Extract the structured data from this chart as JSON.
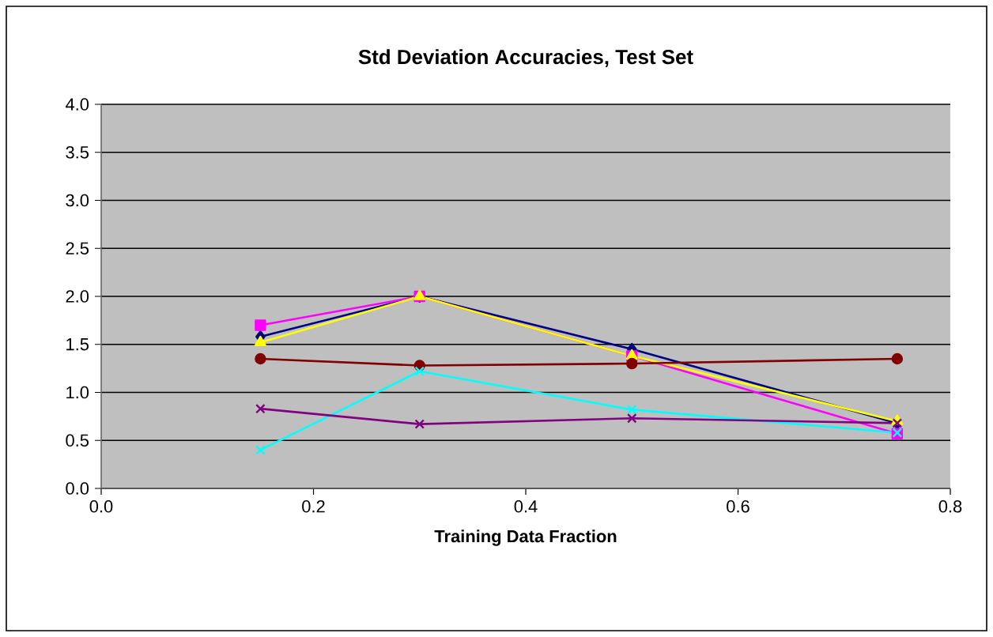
{
  "chart_data": {
    "type": "line",
    "title": "Std Deviation Accuracies, Test Set",
    "xlabel": "Training Data Fraction",
    "x": [
      0.15,
      0.3,
      0.5,
      0.75
    ],
    "series": [
      {
        "color": "#000080",
        "marker": "diamond",
        "values": [
          1.58,
          2.0,
          1.45,
          0.68
        ]
      },
      {
        "color": "#ff00ff",
        "marker": "square",
        "values": [
          1.7,
          2.0,
          1.38,
          0.57
        ]
      },
      {
        "color": "#ffff00",
        "marker": "triangle",
        "values": [
          1.52,
          2.0,
          1.38,
          0.7
        ]
      },
      {
        "color": "#800000",
        "marker": "circle",
        "values": [
          1.35,
          1.28,
          1.3,
          1.35
        ]
      },
      {
        "color": "#00ffff",
        "marker": "cross",
        "values": [
          0.4,
          1.22,
          0.82,
          0.58
        ]
      },
      {
        "color": "#800080",
        "marker": "cross",
        "values": [
          0.83,
          0.67,
          0.73,
          0.68
        ]
      }
    ],
    "xlim": [
      0,
      0.8
    ],
    "ylim": [
      0,
      4
    ],
    "xticks": [
      {
        "value": 0,
        "label": "0.0"
      },
      {
        "value": 0.2,
        "label": "0.2"
      },
      {
        "value": 0.4,
        "label": "0.4"
      },
      {
        "value": 0.6,
        "label": "0.6"
      },
      {
        "value": 0.8,
        "label": "0.8"
      }
    ],
    "yticks": [
      {
        "value": 0,
        "label": "0.0"
      },
      {
        "value": 0.5,
        "label": "0.5"
      },
      {
        "value": 1,
        "label": "1.0"
      },
      {
        "value": 1.5,
        "label": "1.5"
      },
      {
        "value": 2,
        "label": "2.0"
      },
      {
        "value": 2.5,
        "label": "2.5"
      },
      {
        "value": 3,
        "label": "3.0"
      },
      {
        "value": 3.5,
        "label": "3.5"
      },
      {
        "value": 4,
        "label": "4.0"
      }
    ],
    "grid": "y",
    "line_style": "solid"
  }
}
